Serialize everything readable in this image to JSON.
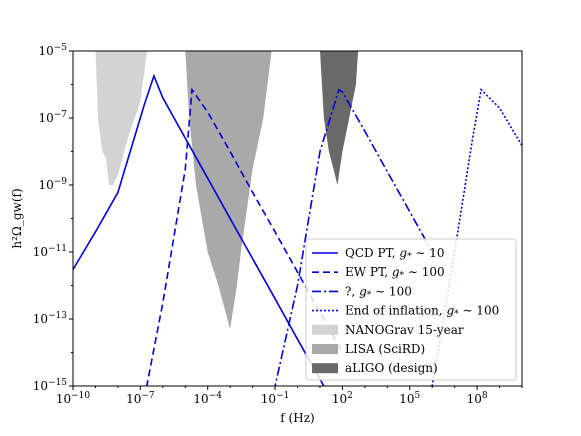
{
  "chart_data": {
    "type": "line",
    "xlabel": "f (Hz)",
    "ylabel": "h²Ω_gw(f)",
    "xscale": "log",
    "yscale": "log",
    "xlim": [
      1e-10,
      10000000000.0
    ],
    "ylim": [
      1e-15,
      1e-05
    ],
    "x_ticks": [
      {
        "value": 1e-10,
        "label": "10−10"
      },
      {
        "value": 1e-07,
        "label": "10−7"
      },
      {
        "value": 0.0001,
        "label": "10−4"
      },
      {
        "value": 0.1,
        "label": "10−1"
      },
      {
        "value": 100.0,
        "label": "102"
      },
      {
        "value": 100000.0,
        "label": "105"
      },
      {
        "value": 100000000.0,
        "label": "108"
      }
    ],
    "y_ticks": [
      {
        "value": 1e-15,
        "label": "10−15"
      },
      {
        "value": 1e-13,
        "label": "10−13"
      },
      {
        "value": 1e-11,
        "label": "10−11"
      },
      {
        "value": 1e-09,
        "label": "10−9"
      },
      {
        "value": 1e-07,
        "label": "10−7"
      },
      {
        "value": 1e-05,
        "label": "10−5"
      }
    ],
    "grid": false,
    "legend_position": "lower-right",
    "series": [
      {
        "name": "QCD PT, g* ∼ 10",
        "legend_main": "QCD PT, ",
        "legend_sym": "g",
        "legend_sub": "*",
        "legend_tail": " ∼ 10",
        "style": "solid",
        "color": "#0000dd",
        "x": [
          1e-10,
          1e-09,
          1e-08,
          1.5e-07,
          4e-07,
          1e-06,
          1e-05,
          0.0001,
          0.001,
          0.01,
          0.1,
          1,
          10,
          100
        ],
        "y": [
          3e-12,
          4e-11,
          6e-10,
          2.5e-07,
          1.8e-06,
          4e-07,
          2.5e-08,
          1.6e-09,
          1e-10,
          6.3e-12,
          4e-13,
          2.5e-14,
          1.6e-15,
          1e-16
        ]
      },
      {
        "name": "EW PT, g* ∼ 100",
        "legend_main": "EW PT, ",
        "legend_sym": "g",
        "legend_sub": "*",
        "legend_tail": " ∼ 100",
        "style": "dashed",
        "color": "#0000dd",
        "x": [
          1e-07,
          1e-06,
          1e-05,
          2e-05,
          0.0001,
          0.001,
          0.01,
          0.1,
          1,
          10,
          100
        ],
        "y": [
          1e-16,
          3e-13,
          3e-09,
          7e-07,
          1.5e-07,
          1e-08,
          6e-10,
          4e-11,
          2.5e-12,
          1.6e-13,
          1e-14
        ]
      },
      {
        "name": "?, g* ∼ 100",
        "legend_main": "?, ",
        "legend_sym": "g",
        "legend_sub": "*",
        "legend_tail": " ∼ 100",
        "style": "dashdot",
        "color": "#0000dd",
        "x": [
          0.01,
          0.1,
          1,
          10,
          70,
          100,
          1000,
          10000.0,
          100000.0,
          1000000.0
        ],
        "y": [
          1e-16,
          1e-15,
          1e-12,
          1e-08,
          7e-07,
          6e-07,
          4e-08,
          2.5e-09,
          1.6e-10,
          1e-11
        ]
      },
      {
        "name": "End of inflation, g* ∼ 100",
        "legend_main": "End of inflation, ",
        "legend_sym": "g",
        "legend_sub": "*",
        "legend_tail": " ∼ 100",
        "style": "dotted",
        "color": "#0000dd",
        "x": [
          100000.0,
          1000000.0,
          10000000.0,
          60000000.0,
          150000000.0,
          1000000000.0,
          10000000000.0
        ],
        "y": [
          1e-16,
          1e-15,
          1e-11,
          2e-08,
          7e-07,
          2e-07,
          1.5e-08
        ]
      }
    ],
    "regions": [
      {
        "name": "NANOGrav 15-year",
        "color": "#d3d3d3",
        "x": [
          1e-09,
          1.3e-09,
          2e-09,
          3e-09,
          4e-09,
          6e-09,
          1e-08,
          3e-08,
          1e-07,
          2e-07
        ],
        "y": [
          1e-05,
          1e-07,
          1e-08,
          6e-09,
          1e-09,
          1e-09,
          2e-09,
          3e-08,
          3e-07,
          1e-05
        ]
      },
      {
        "name": "LISA (SciRD)",
        "color": "#a9a9a9",
        "x": [
          1e-05,
          1.5e-05,
          3e-05,
          0.0001,
          0.0003,
          0.001,
          0.002,
          0.003,
          0.01,
          0.03,
          0.07
        ],
        "y": [
          1e-05,
          1e-07,
          1e-09,
          1e-11,
          1e-12,
          5e-14,
          1e-12,
          1e-11,
          3e-09,
          1e-07,
          1e-05
        ]
      },
      {
        "name": "aLIGO (design)",
        "color": "#696969",
        "x": [
          10,
          15,
          25,
          40,
          60,
          100,
          200,
          400,
          500
        ],
        "y": [
          1e-05,
          1e-07,
          1e-08,
          3e-09,
          1e-09,
          1e-08,
          1e-07,
          1e-06,
          1e-05
        ]
      }
    ]
  }
}
